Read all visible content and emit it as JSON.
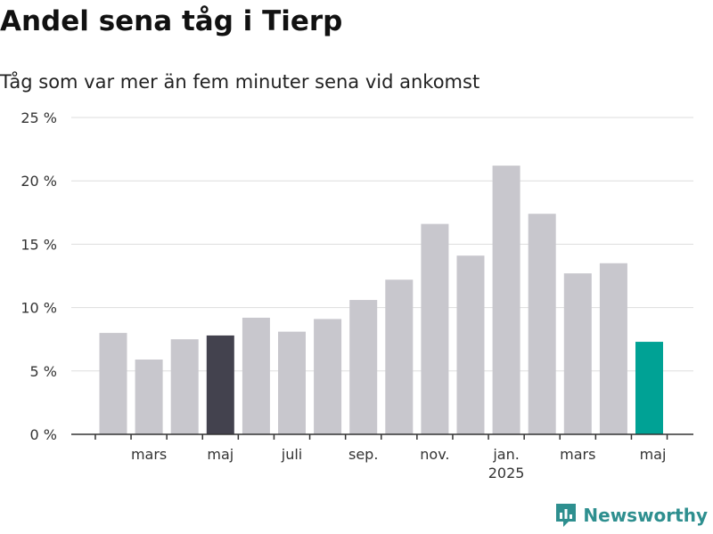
{
  "chart_data": {
    "type": "bar",
    "title": "Andel sena tåg i Tierp",
    "subtitle": "Tåg som var mer än fem minuter sena vid ankomst",
    "y_ticks": [
      "0 %",
      "5 %",
      "10 %",
      "15 %",
      "20 %",
      "25 %"
    ],
    "ylim": [
      0,
      25
    ],
    "grid": true,
    "x_tick_labels": [
      "mars",
      "maj",
      "juli",
      "sep.",
      "nov.",
      "jan.",
      "mars",
      "maj"
    ],
    "year_label": "2025",
    "categories": [
      "2024-02",
      "2024-03",
      "2024-04",
      "2024-05",
      "2024-06",
      "2024-07",
      "2024-08",
      "2024-09",
      "2024-10",
      "2024-11",
      "2024-12",
      "2025-01",
      "2025-02",
      "2025-03",
      "2025-04",
      "2025-05"
    ],
    "values": [
      8.0,
      5.9,
      7.5,
      7.8,
      9.2,
      8.1,
      9.1,
      10.6,
      12.2,
      16.6,
      14.1,
      21.2,
      17.4,
      12.7,
      13.5,
      7.3
    ],
    "colors": {
      "default": "#c8c7cd",
      "highlight_prev_year": "#43424e",
      "highlight_current": "#00a295"
    },
    "highlight": {
      "2024-05": "highlight_prev_year",
      "2025-05": "highlight_current"
    }
  },
  "branding": {
    "name": "Newsworthy",
    "icon": "newsworthy-logo-icon"
  }
}
